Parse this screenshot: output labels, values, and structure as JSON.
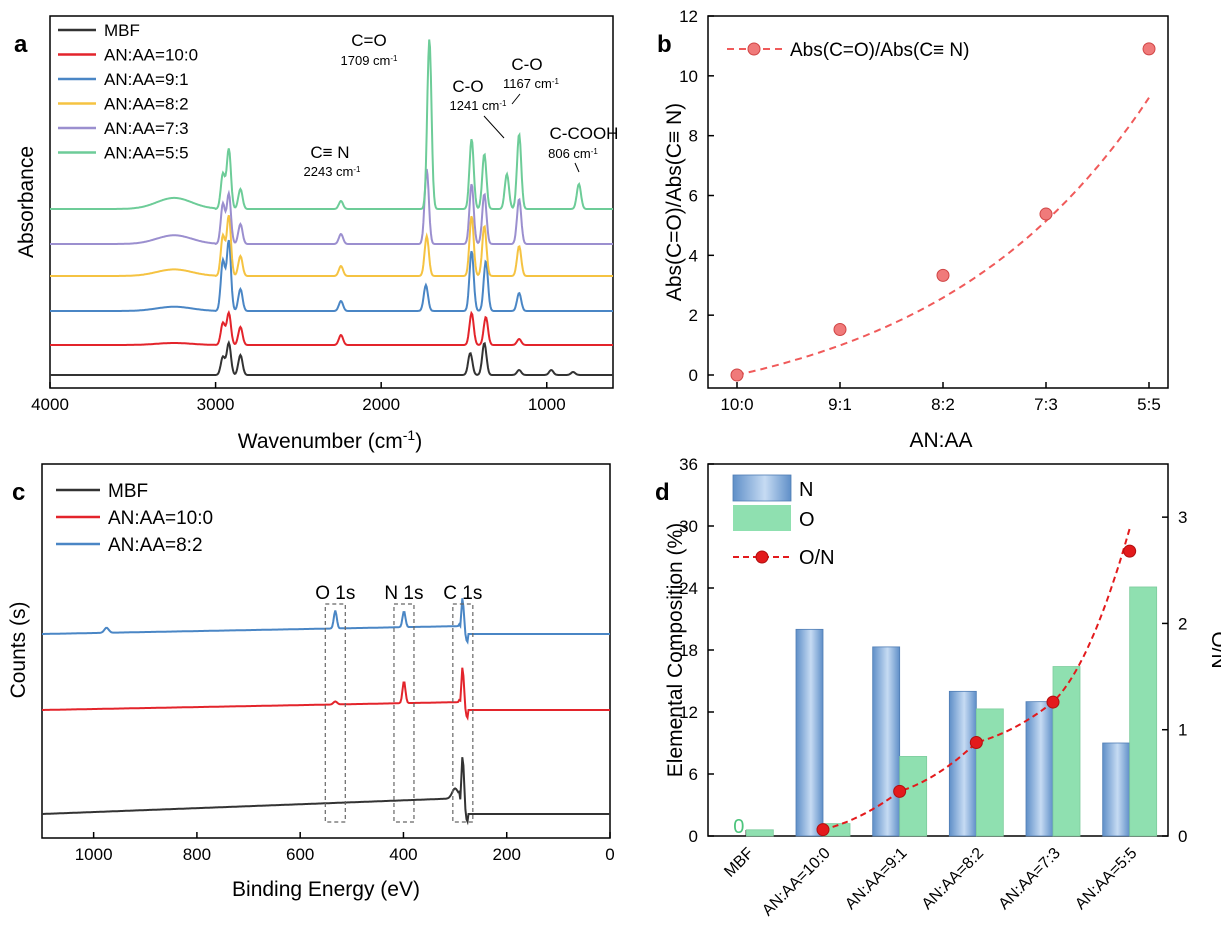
{
  "chart_data": [
    {
      "panel": "a",
      "type": "line",
      "xlabel": "Wavenumber (cm",
      "xlabel_sup": "-1",
      "xlabel_tail": ")",
      "ylabel": "Absorbance",
      "xlim": [
        4000,
        600
      ],
      "xticks": [
        "4000",
        "3000",
        "2000",
        "1000"
      ],
      "x_reversed": true,
      "legend_position": "top-left",
      "series": [
        {
          "name": "MBF",
          "color": "#333333",
          "offset": 0,
          "peaks": [
            [
              2956,
              18
            ],
            [
              2920,
              32
            ],
            [
              2850,
              20
            ],
            [
              1462,
              22
            ],
            [
              1377,
              32
            ],
            [
              1167,
              5
            ],
            [
              973,
              5
            ],
            [
              841,
              3
            ]
          ]
        },
        {
          "name": "AN:AA=10:0",
          "color": "#e3242b",
          "offset": 30,
          "peaks": [
            [
              2956,
              22
            ],
            [
              2920,
              32
            ],
            [
              2850,
              18
            ],
            [
              2243,
              10
            ],
            [
              1454,
              32
            ],
            [
              1368,
              28
            ],
            [
              1167,
              6
            ]
          ]
        },
        {
          "name": "AN:AA=9:1",
          "color": "#4a86c5",
          "offset": 64,
          "peaks": [
            [
              2956,
              50
            ],
            [
              2920,
              70
            ],
            [
              2850,
              22
            ],
            [
              2243,
              10
            ],
            [
              1730,
              26
            ],
            [
              1454,
              60
            ],
            [
              1368,
              50
            ],
            [
              1167,
              18
            ]
          ]
        },
        {
          "name": "AN:AA=8:2",
          "color": "#f5c342",
          "offset": 99,
          "peaks": [
            [
              2956,
              40
            ],
            [
              2920,
              60
            ],
            [
              2850,
              20
            ],
            [
              2243,
              10
            ],
            [
              1725,
              40
            ],
            [
              1454,
              60
            ],
            [
              1377,
              50
            ],
            [
              1167,
              30
            ]
          ]
        },
        {
          "name": "AN:AA=7:3",
          "color": "#9b8fcf",
          "offset": 131,
          "peaks": [
            [
              2956,
              40
            ],
            [
              2920,
              50
            ],
            [
              2850,
              20
            ],
            [
              2243,
              10
            ],
            [
              1725,
              75
            ],
            [
              1454,
              60
            ],
            [
              1377,
              50
            ],
            [
              1167,
              45
            ]
          ]
        },
        {
          "name": "AN:AA=5:5",
          "color": "#6dcc98",
          "offset": 166,
          "peaks": [
            [
              2956,
              35
            ],
            [
              2920,
              60
            ],
            [
              2850,
              20
            ],
            [
              2243,
              8
            ],
            [
              1709,
              170
            ],
            [
              1454,
              70
            ],
            [
              1377,
              55
            ],
            [
              1241,
              35
            ],
            [
              1167,
              75
            ],
            [
              806,
              25
            ]
          ]
        }
      ],
      "annotations": [
        {
          "label": "C=O",
          "sub": "1709 cm",
          "sup": "-1"
        },
        {
          "label": "C-O",
          "sub": "1241 cm",
          "sup": "-1"
        },
        {
          "label": "C-O",
          "sub": "1167 cm",
          "sup": "-1"
        },
        {
          "label": "C≡ N",
          "sub": "2243 cm",
          "sup": "-1"
        },
        {
          "label": "C-COOH",
          "sub": "806 cm",
          "sup": "-1"
        }
      ]
    },
    {
      "panel": "b",
      "type": "scatter",
      "categories": [
        "10:0",
        "9:1",
        "8:2",
        "7:3",
        "5:5"
      ],
      "series": [
        {
          "name": "Abs(C=O)/Abs(C≡ N)",
          "values": [
            0.0,
            1.52,
            3.33,
            5.38,
            10.9
          ],
          "color": "#f05a5a"
        }
      ],
      "xlabel": "AN:AA",
      "ylabel": "Abs(C=O)/Abs(C≡ N)",
      "ylim": [
        0,
        12
      ],
      "yticks": [
        "0",
        "2",
        "4",
        "6",
        "8",
        "10",
        "12"
      ],
      "legend_position": "top-left"
    },
    {
      "panel": "c",
      "type": "line",
      "xlabel": "Binding Energy (eV)",
      "ylabel": "Counts (s)",
      "xlim": [
        1100,
        0
      ],
      "xticks": [
        "1000",
        "800",
        "600",
        "400",
        "200",
        "0"
      ],
      "x_reversed": true,
      "legend_position": "top-left",
      "series": [
        {
          "name": "MBF",
          "color": "#333333",
          "offset": 0
        },
        {
          "name": "AN:AA=10:0",
          "color": "#e3242b",
          "offset": 108
        },
        {
          "name": "AN:AA=8:2",
          "color": "#4a86c5",
          "offset": 186
        }
      ],
      "peak_labels": [
        {
          "label": "O 1s",
          "x": 532
        },
        {
          "label": "N 1s",
          "x": 399
        },
        {
          "label": "C 1s",
          "x": 285
        }
      ]
    },
    {
      "panel": "d",
      "type": "bar",
      "categories": [
        "MBF",
        "AN:AA=10:0",
        "AN:AA=9:1",
        "AN:AA=8:2",
        "AN:AA=7:3",
        "AN:AA=5:5"
      ],
      "series": [
        {
          "name": "N",
          "values": [
            0,
            20.0,
            18.3,
            14.0,
            13.0,
            9.0
          ],
          "color": "#6b9bd2"
        },
        {
          "name": "O",
          "values": [
            0.6,
            1.2,
            7.7,
            12.3,
            16.4,
            24.1
          ],
          "color": "#8fe0b0"
        },
        {
          "name": "O/N",
          "values": [
            null,
            0.06,
            0.42,
            0.88,
            1.26,
            2.68
          ],
          "color": "#e31a1c",
          "axis": "right"
        }
      ],
      "ylabel": "Elemental Composition (%)",
      "ylabel_right": "O/N",
      "ylim": [
        0,
        36
      ],
      "ylim_right": [
        0,
        3.5
      ],
      "yticks": [
        "0",
        "6",
        "12",
        "18",
        "24",
        "30",
        "36"
      ],
      "yticks_right": [
        "0",
        "1",
        "2",
        "3"
      ],
      "zero_label": "0",
      "legend_position": "top-left"
    }
  ]
}
